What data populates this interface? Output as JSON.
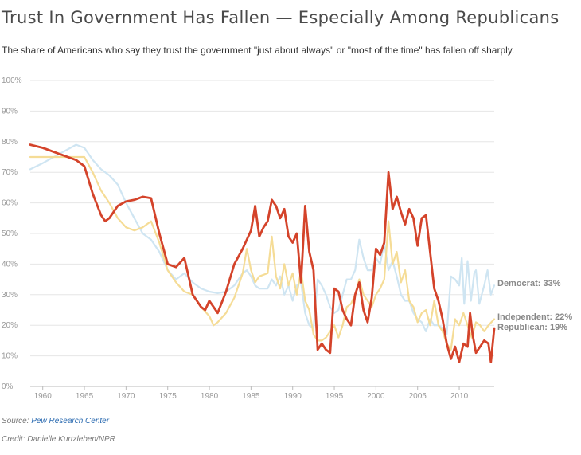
{
  "header": {
    "title": "Trust In Government Has Fallen — Especially Among Republicans",
    "subtitle": "The share of Americans who say they trust the government \"just about always\" or \"most of the time\" has fallen off sharply."
  },
  "footer": {
    "source_label": "Source:",
    "source_name": "Pew Research Center",
    "credit": "Credit: Danielle Kurtzleben/NPR"
  },
  "colors": {
    "democrat": "#cfe5f2",
    "independent": "#f5dc96",
    "republican": "#d4432a",
    "grid": "#e6e6e6",
    "tick_text": "#999999",
    "end_label": "#888888"
  },
  "chart_data": {
    "type": "line",
    "title": "Trust In Government Has Fallen — Especially Among Republicans",
    "xlabel": "",
    "ylabel": "",
    "xlim": [
      1958.5,
      2014.2
    ],
    "ylim": [
      0,
      100
    ],
    "grid": true,
    "legend": "inline labels at right end of lines",
    "x_ticks": [
      1960,
      1965,
      1970,
      1975,
      1980,
      1985,
      1990,
      1995,
      2000,
      2005,
      2010
    ],
    "x_tick_labels": [
      "1960",
      "1965",
      "1970",
      "1975",
      "1980",
      "1985",
      "1990",
      "1995",
      "2000",
      "2005",
      "2010"
    ],
    "y_ticks": [
      0,
      10,
      20,
      30,
      40,
      50,
      60,
      70,
      80,
      90,
      100
    ],
    "y_tick_labels": [
      "0%",
      "10%",
      "20%",
      "30%",
      "40%",
      "50%",
      "60%",
      "70%",
      "80%",
      "90%",
      "100%"
    ],
    "series": [
      {
        "name": "Democrat",
        "end_label": "Democrat: 33%",
        "color": "#cfe5f2",
        "points": [
          [
            1958.5,
            71
          ],
          [
            1960,
            73
          ],
          [
            1962,
            76
          ],
          [
            1964,
            79
          ],
          [
            1965,
            78
          ],
          [
            1966,
            74
          ],
          [
            1967,
            71
          ],
          [
            1968,
            69
          ],
          [
            1969,
            66
          ],
          [
            1970,
            60
          ],
          [
            1971,
            55
          ],
          [
            1972,
            50
          ],
          [
            1973,
            48
          ],
          [
            1974,
            44
          ],
          [
            1975,
            38
          ],
          [
            1976,
            35
          ],
          [
            1977,
            37
          ],
          [
            1978,
            34
          ],
          [
            1979,
            32
          ],
          [
            1980,
            31
          ],
          [
            1981,
            30.5
          ],
          [
            1982,
            31
          ],
          [
            1983,
            33
          ],
          [
            1984,
            37
          ],
          [
            1984.5,
            38
          ],
          [
            1985,
            36
          ],
          [
            1985.5,
            33
          ],
          [
            1986,
            32
          ],
          [
            1987,
            32
          ],
          [
            1987.5,
            35
          ],
          [
            1988,
            33
          ],
          [
            1988.5,
            36
          ],
          [
            1989,
            30
          ],
          [
            1989.5,
            33
          ],
          [
            1990,
            28
          ],
          [
            1990.5,
            33
          ],
          [
            1991,
            34
          ],
          [
            1991.5,
            24
          ],
          [
            1992,
            20
          ],
          [
            1992.5,
            19
          ],
          [
            1993,
            35
          ],
          [
            1993.5,
            33
          ],
          [
            1994,
            30
          ],
          [
            1994.5,
            26
          ],
          [
            1995,
            24
          ],
          [
            1995.5,
            25
          ],
          [
            1996,
            30
          ],
          [
            1996.5,
            35
          ],
          [
            1997,
            35
          ],
          [
            1997.5,
            38
          ],
          [
            1998,
            48
          ],
          [
            1998.5,
            42
          ],
          [
            1999,
            38
          ],
          [
            1999.5,
            38
          ],
          [
            2000,
            42
          ],
          [
            2000.5,
            40
          ],
          [
            2001,
            47
          ],
          [
            2001.5,
            38
          ],
          [
            2002,
            41
          ],
          [
            2002.5,
            36
          ],
          [
            2003,
            30
          ],
          [
            2003.5,
            28
          ],
          [
            2004,
            28
          ],
          [
            2004.5,
            24
          ],
          [
            2005,
            22
          ],
          [
            2005.5,
            21
          ],
          [
            2006,
            18
          ],
          [
            2006.5,
            22
          ],
          [
            2007,
            20
          ],
          [
            2007.5,
            20
          ],
          [
            2008,
            19
          ],
          [
            2008.5,
            17
          ],
          [
            2009,
            36
          ],
          [
            2009.5,
            35
          ],
          [
            2010,
            33
          ],
          [
            2010.3,
            42
          ],
          [
            2010.6,
            27
          ],
          [
            2011,
            41
          ],
          [
            2011.4,
            28
          ],
          [
            2011.8,
            37
          ],
          [
            2012,
            38
          ],
          [
            2012.4,
            27
          ],
          [
            2012.8,
            31
          ],
          [
            2013,
            33
          ],
          [
            2013.4,
            38
          ],
          [
            2013.8,
            30
          ],
          [
            2014.2,
            33
          ]
        ]
      },
      {
        "name": "Independent",
        "end_label": "Independent: 22%",
        "color": "#f5dc96",
        "points": [
          [
            1958.5,
            75
          ],
          [
            1960,
            75
          ],
          [
            1962,
            75
          ],
          [
            1964,
            75
          ],
          [
            1965,
            75
          ],
          [
            1966,
            70
          ],
          [
            1967,
            64
          ],
          [
            1968,
            60
          ],
          [
            1969,
            55
          ],
          [
            1970,
            52
          ],
          [
            1971,
            51
          ],
          [
            1972,
            52
          ],
          [
            1973,
            54
          ],
          [
            1974,
            47
          ],
          [
            1975,
            38
          ],
          [
            1976,
            34
          ],
          [
            1977,
            31
          ],
          [
            1978,
            30
          ],
          [
            1979,
            26
          ],
          [
            1980,
            23
          ],
          [
            1980.5,
            20
          ],
          [
            1981,
            21
          ],
          [
            1982,
            24
          ],
          [
            1983,
            29
          ],
          [
            1984,
            37
          ],
          [
            1984.5,
            45
          ],
          [
            1985,
            38
          ],
          [
            1985.5,
            34
          ],
          [
            1986,
            36
          ],
          [
            1987,
            37
          ],
          [
            1987.5,
            49
          ],
          [
            1988,
            36
          ],
          [
            1988.5,
            32
          ],
          [
            1989,
            40
          ],
          [
            1989.5,
            33
          ],
          [
            1990,
            37
          ],
          [
            1990.5,
            30
          ],
          [
            1991,
            38
          ],
          [
            1991.5,
            28
          ],
          [
            1992,
            25
          ],
          [
            1992.5,
            17
          ],
          [
            1993,
            15
          ],
          [
            1993.5,
            15
          ],
          [
            1994,
            16
          ],
          [
            1995,
            20
          ],
          [
            1995.5,
            16
          ],
          [
            1996,
            20
          ],
          [
            1996.5,
            26
          ],
          [
            1997,
            27
          ],
          [
            1997.5,
            30
          ],
          [
            1998,
            35
          ],
          [
            1998.5,
            30
          ],
          [
            1999,
            28
          ],
          [
            1999.5,
            26
          ],
          [
            2000,
            30
          ],
          [
            2000.5,
            32
          ],
          [
            2001,
            35
          ],
          [
            2001.5,
            54
          ],
          [
            2002,
            40
          ],
          [
            2002.5,
            44
          ],
          [
            2003,
            34
          ],
          [
            2003.5,
            38
          ],
          [
            2004,
            28
          ],
          [
            2004.5,
            26
          ],
          [
            2005,
            21
          ],
          [
            2005.5,
            24
          ],
          [
            2006,
            25
          ],
          [
            2006.5,
            20
          ],
          [
            2007,
            28
          ],
          [
            2007.5,
            20
          ],
          [
            2008,
            18
          ],
          [
            2008.5,
            14
          ],
          [
            2009,
            12
          ],
          [
            2009.5,
            22
          ],
          [
            2010,
            20
          ],
          [
            2010.5,
            24
          ],
          [
            2011,
            20
          ],
          [
            2011.5,
            16
          ],
          [
            2012,
            21
          ],
          [
            2012.5,
            20
          ],
          [
            2013,
            18
          ],
          [
            2013.5,
            20
          ],
          [
            2014.2,
            22
          ]
        ]
      },
      {
        "name": "Republican",
        "end_label": "Republican: 19%",
        "color": "#d4432a",
        "points": [
          [
            1958.5,
            79
          ],
          [
            1960,
            78
          ],
          [
            1962,
            76
          ],
          [
            1964,
            74
          ],
          [
            1965,
            72
          ],
          [
            1966,
            63
          ],
          [
            1967,
            56
          ],
          [
            1967.5,
            54
          ],
          [
            1968,
            55
          ],
          [
            1969,
            59
          ],
          [
            1970,
            60.5
          ],
          [
            1971,
            61
          ],
          [
            1972,
            62
          ],
          [
            1973,
            61.5
          ],
          [
            1974,
            50
          ],
          [
            1975,
            40
          ],
          [
            1976,
            39
          ],
          [
            1977,
            42
          ],
          [
            1977.5,
            36
          ],
          [
            1978,
            30
          ],
          [
            1979,
            26
          ],
          [
            1979.5,
            25
          ],
          [
            1980,
            28
          ],
          [
            1980.5,
            26
          ],
          [
            1981,
            24
          ],
          [
            1982,
            31
          ],
          [
            1983,
            40
          ],
          [
            1984,
            45
          ],
          [
            1985,
            51
          ],
          [
            1985.5,
            59
          ],
          [
            1986,
            49
          ],
          [
            1986.5,
            52
          ],
          [
            1987,
            54
          ],
          [
            1987.5,
            61
          ],
          [
            1988,
            59
          ],
          [
            1988.5,
            55
          ],
          [
            1989,
            58
          ],
          [
            1989.5,
            49
          ],
          [
            1990,
            47
          ],
          [
            1990.5,
            50
          ],
          [
            1991,
            34
          ],
          [
            1991.5,
            59
          ],
          [
            1992,
            44
          ],
          [
            1992.5,
            38
          ],
          [
            1993,
            12
          ],
          [
            1993.5,
            14
          ],
          [
            1994,
            12
          ],
          [
            1994.5,
            11
          ],
          [
            1995,
            32
          ],
          [
            1995.5,
            31
          ],
          [
            1996,
            25
          ],
          [
            1996.5,
            22
          ],
          [
            1997,
            20
          ],
          [
            1997.5,
            30
          ],
          [
            1998,
            34
          ],
          [
            1998.5,
            25
          ],
          [
            1999,
            21
          ],
          [
            1999.5,
            29
          ],
          [
            2000,
            45
          ],
          [
            2000.5,
            43
          ],
          [
            2001,
            47
          ],
          [
            2001.5,
            70
          ],
          [
            2002,
            58
          ],
          [
            2002.5,
            62
          ],
          [
            2003,
            57
          ],
          [
            2003.5,
            53
          ],
          [
            2004,
            58
          ],
          [
            2004.5,
            55
          ],
          [
            2005,
            46
          ],
          [
            2005.5,
            55
          ],
          [
            2006,
            56
          ],
          [
            2006.5,
            44
          ],
          [
            2007,
            32
          ],
          [
            2007.5,
            28
          ],
          [
            2008,
            22
          ],
          [
            2008.5,
            14
          ],
          [
            2009,
            9
          ],
          [
            2009.5,
            13
          ],
          [
            2010,
            8
          ],
          [
            2010.5,
            14
          ],
          [
            2011,
            13
          ],
          [
            2011.3,
            24
          ],
          [
            2011.6,
            17
          ],
          [
            2012,
            11
          ],
          [
            2012.5,
            13
          ],
          [
            2013,
            15
          ],
          [
            2013.5,
            14
          ],
          [
            2013.8,
            8
          ],
          [
            2014.2,
            19
          ]
        ]
      }
    ]
  }
}
